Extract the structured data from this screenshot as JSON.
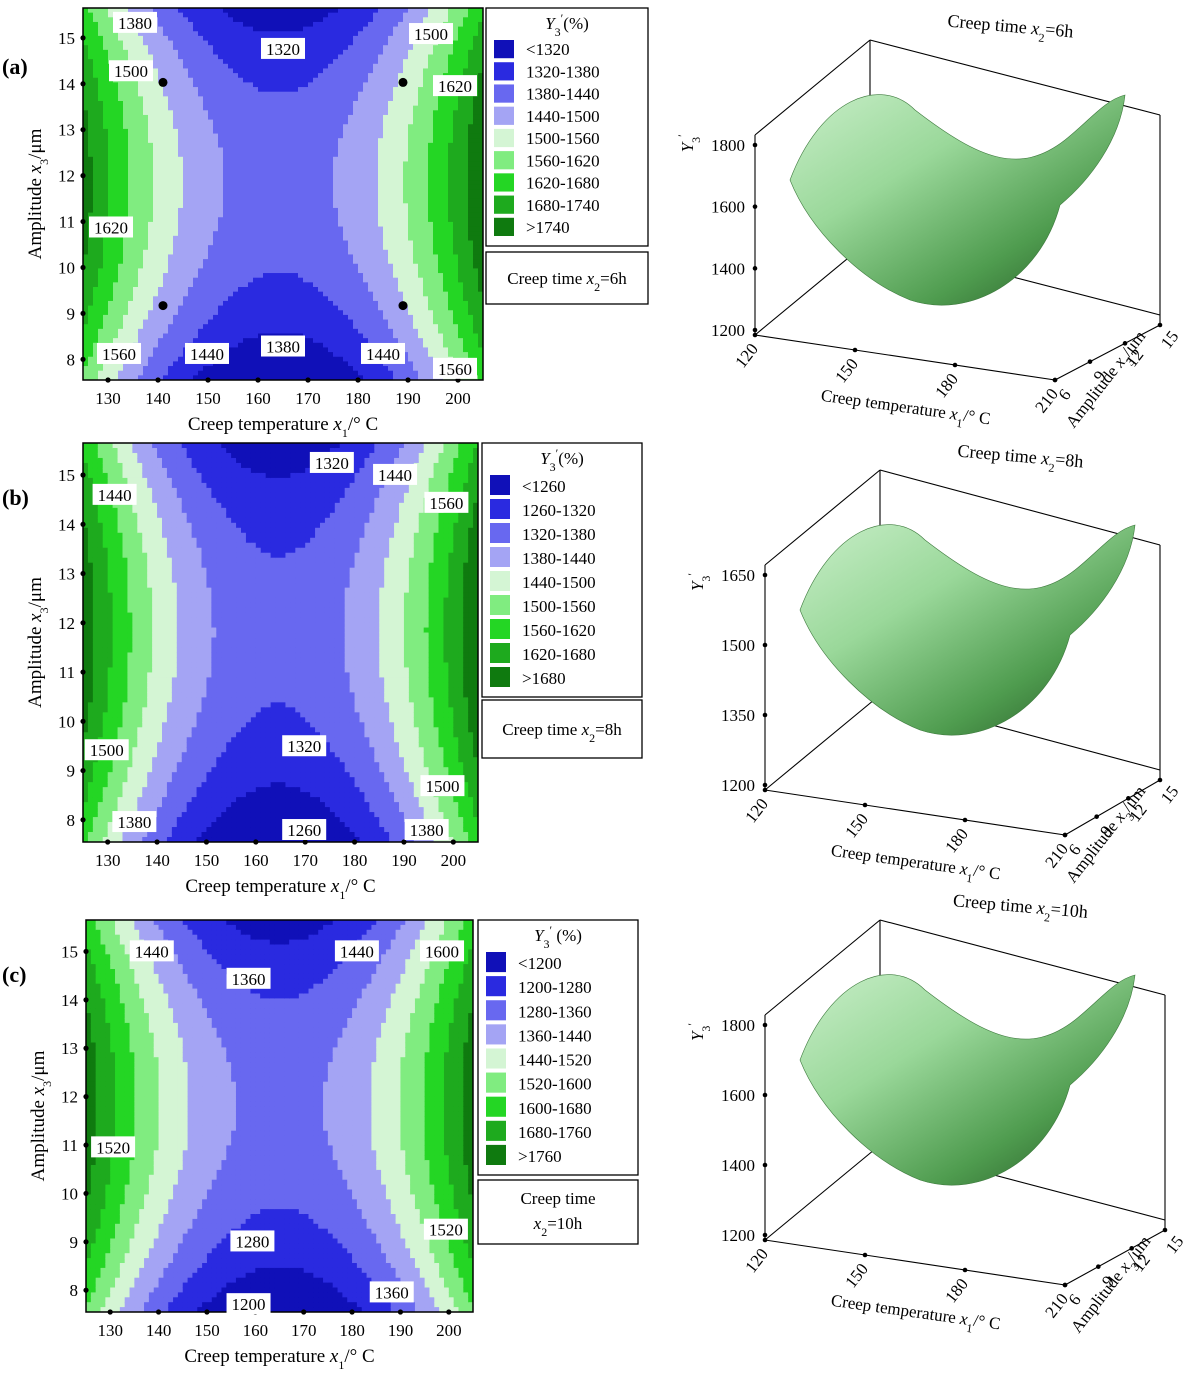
{
  "chart_data": [
    {
      "panel": "(a)",
      "type": "contour",
      "title": "Creep time x2=6h",
      "x_ticks": [
        "130",
        "140",
        "150",
        "160",
        "170",
        "180",
        "190",
        "200"
      ],
      "y_ticks": [
        "8",
        "9",
        "10",
        "11",
        "12",
        "13",
        "14",
        "15"
      ],
      "xlabel": {
        "main": "Creep temperature x",
        "sub": "1",
        "tail": "/° C"
      },
      "ylabel": {
        "main": "Amplitude x",
        "sub": "3",
        "tail": "/μm"
      },
      "legend_title": {
        "main": "Y",
        "sub": "3",
        "sup": "′",
        "tail": "(%)"
      },
      "legend": [
        "<1320",
        "1320-1380",
        "1380-1440",
        "1440-1500",
        "1500-1560",
        "1560-1620",
        "1620-1680",
        "1680-1740",
        ">1740"
      ],
      "condition": [
        "Creep time x2=6h"
      ],
      "contour_labels": [
        "1380",
        "1320",
        "1500",
        "1500",
        "1620",
        "1620",
        "1560",
        "1440",
        "1380",
        "1440",
        "1560"
      ],
      "surface": {
        "z_ticks": [
          "1800",
          "1600",
          "1400",
          "1200"
        ],
        "x_ticks": [
          "120",
          "150",
          "180",
          "210"
        ],
        "y_ticks": [
          "6",
          "9",
          "12",
          "15"
        ],
        "xlabel": "Creep temperature x1/° C",
        "ylabel": "Amplitude x3/μm",
        "zlabel": "Y3′",
        "title": "Creep time x2=6h"
      }
    },
    {
      "panel": "(b)",
      "type": "contour",
      "title": "Creep time x2=8h",
      "x_ticks": [
        "130",
        "140",
        "150",
        "160",
        "170",
        "180",
        "190",
        "200"
      ],
      "y_ticks": [
        "8",
        "9",
        "10",
        "11",
        "12",
        "13",
        "14",
        "15"
      ],
      "xlabel": {
        "main": "Creep temperature x",
        "sub": "1",
        "tail": "/° C"
      },
      "ylabel": {
        "main": "Amplitude x",
        "sub": "3",
        "tail": "/μm"
      },
      "legend_title": {
        "main": "Y",
        "sub": "3",
        "sup": "′",
        "tail": "(%)"
      },
      "legend": [
        "<1260",
        "1260-1320",
        "1320-1380",
        "1380-1440",
        "1440-1500",
        "1500-1560",
        "1560-1620",
        "1620-1680",
        ">1680"
      ],
      "condition": [
        "Creep time x2=8h"
      ],
      "contour_labels": [
        "1320",
        "1440",
        "1440",
        "1560",
        "1320",
        "1500",
        "1500",
        "1380",
        "1260",
        "1380"
      ],
      "surface": {
        "z_ticks": [
          "1650",
          "1500",
          "1350",
          "1200"
        ],
        "x_ticks": [
          "120",
          "150",
          "180",
          "210"
        ],
        "y_ticks": [
          "6",
          "9",
          "12",
          "15"
        ],
        "xlabel": "Creep temperature x1/° C",
        "ylabel": "Amplitude x3/μm",
        "zlabel": "Y3′",
        "title": "Creep time x2=8h"
      }
    },
    {
      "panel": "(c)",
      "type": "contour",
      "title": "Creep time x2=10h",
      "x_ticks": [
        "130",
        "140",
        "150",
        "160",
        "170",
        "180",
        "190",
        "200"
      ],
      "y_ticks": [
        "8",
        "9",
        "10",
        "11",
        "12",
        "13",
        "14",
        "15"
      ],
      "xlabel": {
        "main": "Creep temperature x",
        "sub": "1",
        "tail": "/° C"
      },
      "ylabel": {
        "main": "Amplitude x",
        "sub": "3",
        "tail": "/μm"
      },
      "legend_title": {
        "main": "Y",
        "sub": "3",
        "sup": "′",
        "tail": " (%)"
      },
      "legend": [
        "<1200",
        "1200-1280",
        "1280-1360",
        "1360-1440",
        "1440-1520",
        "1520-1600",
        "1600-1680",
        "1680-1760",
        ">1760"
      ],
      "condition": [
        "Creep time",
        "x2=10h"
      ],
      "contour_labels": [
        "1440",
        "1360",
        "1440",
        "1600",
        "1520",
        "1520",
        "1280",
        "1360",
        "1200"
      ],
      "surface": {
        "z_ticks": [
          "1800",
          "1600",
          "1400",
          "1200"
        ],
        "x_ticks": [
          "120",
          "150",
          "180",
          "210"
        ],
        "y_ticks": [
          "6",
          "9",
          "12",
          "15"
        ],
        "xlabel": "Creep temperature x1/° C",
        "ylabel": "Amplitude x3/μm",
        "zlabel": "Y3′",
        "title": "Creep time x2=10h"
      }
    }
  ],
  "colors": {
    "bands": [
      "#1010b8",
      "#2a2ae0",
      "#6868f0",
      "#a4a4f4",
      "#d4f5d4",
      "#80ec80",
      "#24d624",
      "#1eaa1e",
      "#0f7a0f"
    ]
  }
}
